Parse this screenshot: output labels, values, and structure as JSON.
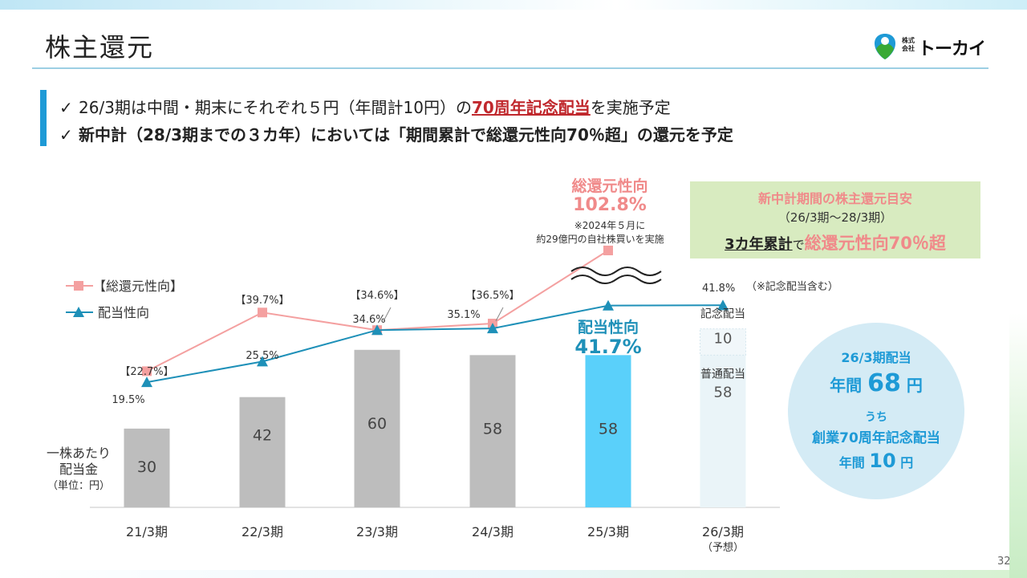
{
  "header": {
    "title": "株主還元",
    "logo_small": "株式\n会社",
    "logo_text": "トーカイ"
  },
  "bullets": {
    "check": "✓",
    "line1_pre": "26/3期は中間・期末にそれぞれ５円（年間計10円）の",
    "line1_em": "70周年記念配当",
    "line1_post": "を実施予定",
    "line2": "新中計（28/3期までの３カ年）においては「期間累計で総還元性向70％超」の還元を予定"
  },
  "chart_data": {
    "type": "bar",
    "categories": [
      "21/3期",
      "22/3期",
      "23/3期",
      "24/3期",
      "25/3期",
      "26/3期"
    ],
    "category_note": [
      "",
      "",
      "",
      "",
      "",
      "（予想）"
    ],
    "dividend_per_share": {
      "label": "一株あたり\n配当金",
      "unit": "（単位：円）",
      "values": [
        30,
        42,
        60,
        58,
        58,
        68
      ]
    },
    "forecast_breakdown": {
      "regular_label": "普通配当",
      "regular": 58,
      "commemorative_label": "記念配当",
      "commemorative": 10
    },
    "series": [
      {
        "name": "【総還元性向】",
        "values": [
          22.7,
          39.7,
          34.6,
          36.5,
          102.8,
          null
        ],
        "labels": [
          "【22.7%】",
          "【39.7%】",
          "【34.6%】",
          "【36.5%】",
          "",
          ""
        ],
        "color": "#f4a0a0"
      },
      {
        "name": "配当性向",
        "values": [
          19.5,
          25.5,
          34.6,
          35.1,
          41.7,
          41.8
        ],
        "labels": [
          "19.5%",
          "25.5%",
          "34.6%",
          "35.1%",
          "",
          "41.8%"
        ],
        "color": "#1e90b8"
      }
    ],
    "bar_colors": {
      "normal": "#bdbdbd",
      "highlight": "#5ad0fa",
      "forecast": "#eaf4f8"
    }
  },
  "annotations": {
    "total_label": "総還元性向",
    "total_value": "102.8%",
    "buyback_note1": "※2024年５月に",
    "buyback_note2": "約29億円の自社株買いを実施",
    "payout_label": "配当性向",
    "payout_value": "41.7%",
    "forecast_note": "（※記念配当含む）"
  },
  "target_box": {
    "title": "新中計期間の株主還元目安",
    "period": "（26/3期～28/3期）",
    "main_ul": "3カ年累計",
    "main_mid": "で",
    "main_pink": "総還元性向70％超"
  },
  "circle": {
    "line1": "26/3期配当",
    "line2_pre": "年間 ",
    "line2_num": "68",
    "line2_post": " 円",
    "line3": "うち",
    "line4": "創業70周年記念配当",
    "line5_pre": "年間 ",
    "line5_num": "10",
    "line5_post": " 円"
  },
  "page_number": "32"
}
